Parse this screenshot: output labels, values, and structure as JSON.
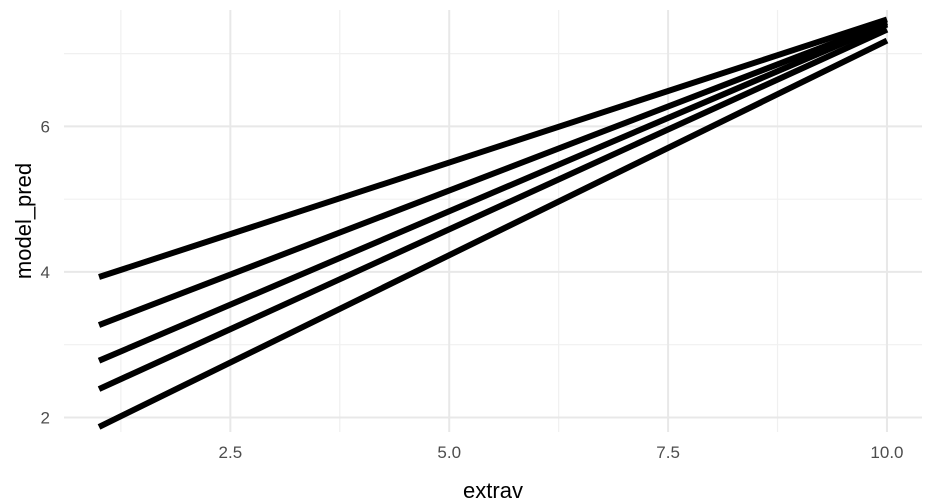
{
  "chart_data": {
    "type": "line",
    "xlabel": "extrav",
    "ylabel": "model_pred",
    "xlim": [
      0.6,
      10.4
    ],
    "ylim": [
      1.8,
      7.6
    ],
    "x_ticks": [
      2.5,
      5.0,
      7.5,
      10.0
    ],
    "x_tick_labels": [
      "2.5",
      "5.0",
      "7.5",
      "10.0"
    ],
    "y_ticks": [
      2,
      4,
      6
    ],
    "y_tick_labels": [
      "2",
      "4",
      "6"
    ],
    "grid": true,
    "legend": "none",
    "line_color": "#000000",
    "series": [
      {
        "x": [
          1,
          10
        ],
        "values": [
          3.93,
          7.47
        ]
      },
      {
        "x": [
          1,
          10
        ],
        "values": [
          3.27,
          7.43
        ]
      },
      {
        "x": [
          1,
          10
        ],
        "values": [
          2.78,
          7.4
        ]
      },
      {
        "x": [
          1,
          10
        ],
        "values": [
          2.39,
          7.33
        ]
      },
      {
        "x": [
          1,
          10
        ],
        "values": [
          1.87,
          7.18
        ]
      }
    ]
  }
}
